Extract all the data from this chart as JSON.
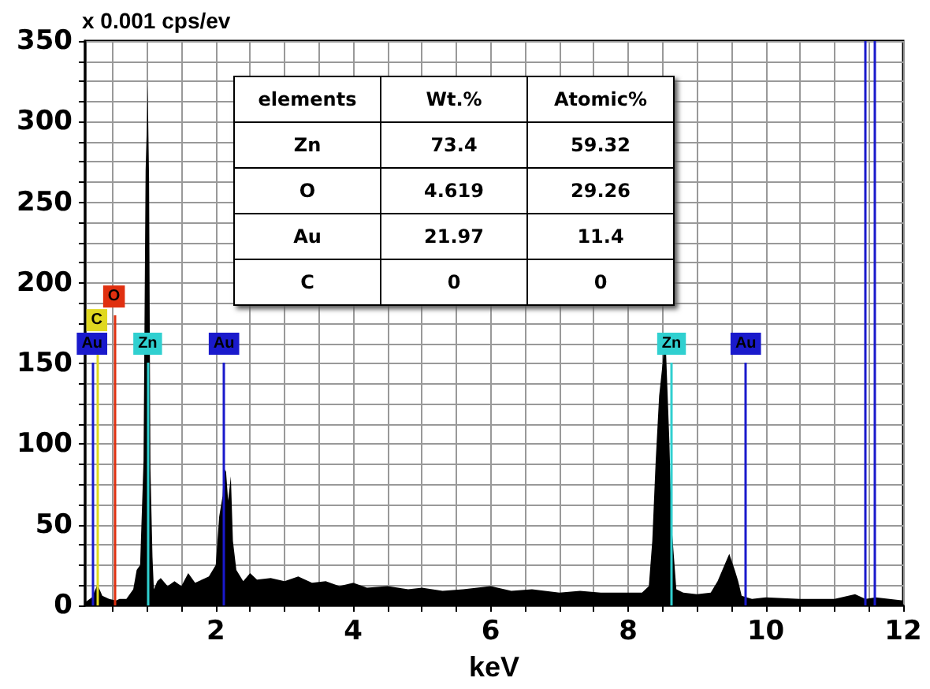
{
  "chart_data": {
    "type": "area",
    "xlabel": "keV",
    "ylabel": "x 0.001 cps/ev",
    "x": [
      0.1,
      0.2,
      0.28,
      0.35,
      0.45,
      0.55,
      0.6,
      0.7,
      0.8,
      0.85,
      0.9,
      0.95,
      0.98,
      1.0,
      1.01,
      1.03,
      1.05,
      1.08,
      1.1,
      1.15,
      1.2,
      1.3,
      1.4,
      1.5,
      1.6,
      1.7,
      1.8,
      1.9,
      2.0,
      2.05,
      2.1,
      2.12,
      2.15,
      2.18,
      2.22,
      2.25,
      2.3,
      2.4,
      2.5,
      2.6,
      2.8,
      3.0,
      3.2,
      3.4,
      3.6,
      3.8,
      4.0,
      4.2,
      4.5,
      4.8,
      5.0,
      5.3,
      5.6,
      6.0,
      6.3,
      6.6,
      7.0,
      7.3,
      7.6,
      8.0,
      8.2,
      8.3,
      8.35,
      8.4,
      8.45,
      8.5,
      8.54,
      8.6,
      8.63,
      8.7,
      8.8,
      9.0,
      9.2,
      9.3,
      9.4,
      9.47,
      9.55,
      9.6,
      9.65,
      9.8,
      10.0,
      10.5,
      11.0,
      11.3,
      11.45,
      11.6,
      12.0
    ],
    "series": [
      {
        "color": "#000000",
        "values": [
          2,
          5,
          13,
          6,
          4,
          3,
          4,
          4,
          10,
          22,
          25,
          90,
          270,
          300,
          323,
          265,
          85,
          30,
          10,
          15,
          17,
          12,
          15,
          12,
          20,
          14,
          16,
          18,
          25,
          55,
          68,
          85,
          83,
          65,
          80,
          40,
          22,
          15,
          20,
          16,
          17,
          15,
          18,
          14,
          15,
          12,
          14,
          11,
          12,
          10,
          11,
          9,
          10,
          12,
          9,
          10,
          8,
          9,
          8,
          8,
          8,
          12,
          40,
          90,
          130,
          150,
          169,
          100,
          50,
          10,
          8,
          7,
          8,
          15,
          25,
          32,
          22,
          15,
          6,
          4,
          5,
          4,
          4,
          7,
          4,
          5,
          3
        ]
      }
    ],
    "xlim": [
      0.1,
      12
    ],
    "xticks": [
      {
        "value": 0.5,
        "label": null
      },
      {
        "value": 1,
        "label": null
      },
      {
        "value": 1.5,
        "label": null
      },
      2,
      {
        "value": 2.5,
        "label": null
      },
      {
        "value": 3,
        "label": null
      },
      {
        "value": 3.5,
        "label": null
      },
      4,
      {
        "value": 4.5,
        "label": null
      },
      {
        "value": 5,
        "label": null
      },
      {
        "value": 5.5,
        "label": null
      },
      6,
      {
        "value": 6.5,
        "label": null
      },
      {
        "value": 7,
        "label": null
      },
      {
        "value": 7.5,
        "label": null
      },
      8,
      {
        "value": 8.5,
        "label": null
      },
      {
        "value": 9,
        "label": null
      },
      {
        "value": 9.5,
        "label": null
      },
      10,
      {
        "value": 10.5,
        "label": null
      },
      {
        "value": 11,
        "label": null
      },
      {
        "value": 11.5,
        "label": null
      },
      12
    ],
    "ylim": [
      0,
      350
    ],
    "yticks": [
      0,
      {
        "value": 12.5,
        "label": null
      },
      {
        "value": 25,
        "label": null
      },
      {
        "value": 37.5,
        "label": null
      },
      50,
      {
        "value": 62.5,
        "label": null
      },
      {
        "value": 75,
        "label": null
      },
      {
        "value": 87.5,
        "label": null
      },
      100,
      {
        "value": 112.5,
        "label": null
      },
      {
        "value": 125,
        "label": null
      },
      {
        "value": 137.5,
        "label": null
      },
      150,
      {
        "value": 162.5,
        "label": null
      },
      {
        "value": 175,
        "label": null
      },
      {
        "value": 187.5,
        "label": null
      },
      200,
      {
        "value": 212.5,
        "label": null
      },
      {
        "value": 225,
        "label": null
      },
      {
        "value": 237.5,
        "label": null
      },
      250,
      {
        "value": 262.5,
        "label": null
      },
      {
        "value": 275,
        "label": null
      },
      {
        "value": 287.5,
        "label": null
      },
      300,
      {
        "value": 312.5,
        "label": null
      },
      {
        "value": 325,
        "label": null
      },
      {
        "value": 337.5,
        "label": null
      },
      350
    ],
    "grid": true,
    "ref_lines": [
      {
        "axis": "x",
        "value": 0.2,
        "label": "Au",
        "color": "#1a1acc"
      },
      {
        "axis": "x",
        "value": 0.27,
        "label": "C",
        "color": "#e0d820"
      },
      {
        "axis": "x",
        "value": 0.52,
        "label": "O",
        "color": "#e03010"
      },
      {
        "axis": "x",
        "value": 1.01,
        "label": "Zn",
        "color": "#30d0d0"
      },
      {
        "axis": "x",
        "value": 2.12,
        "label": "Au",
        "color": "#1a1acc"
      },
      {
        "axis": "x",
        "value": 8.63,
        "label": "Zn",
        "color": "#30d0d0"
      },
      {
        "axis": "x",
        "value": 9.71,
        "label": "Au",
        "color": "#1a1acc"
      },
      {
        "axis": "x",
        "value": 11.44,
        "color": "#1a1acc"
      },
      {
        "axis": "x",
        "value": 11.58,
        "color": "#1a1acc"
      }
    ],
    "annotations": [
      "elements",
      "Wt.%",
      "Atomic%",
      "Zn",
      "73.4",
      "59.32",
      "O",
      "4.619",
      "29.26",
      "Au",
      "21.97",
      "11.4",
      "C",
      "0",
      "0"
    ]
  }
}
